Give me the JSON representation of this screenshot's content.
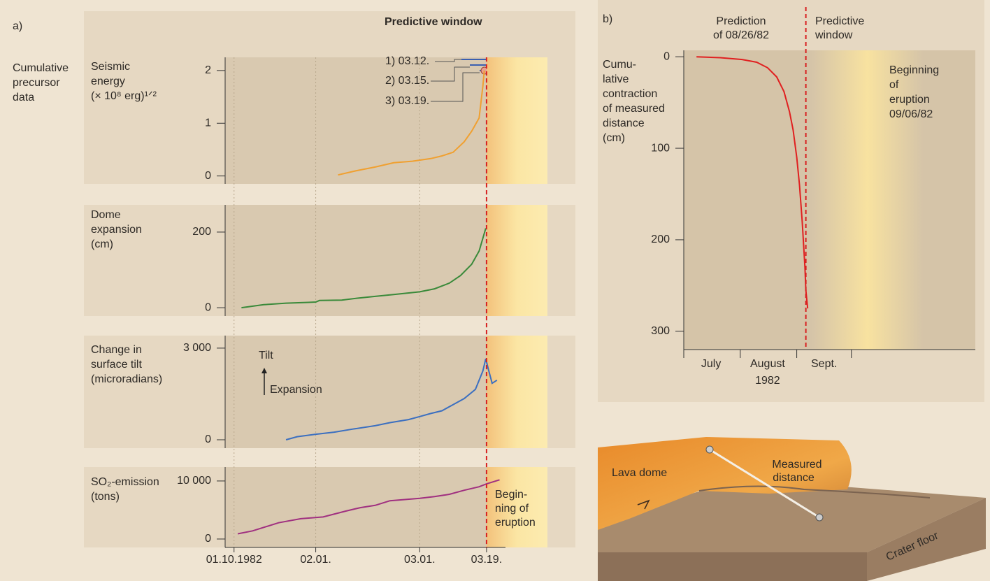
{
  "panel_a": {
    "label": "a)",
    "window": "Predictive window",
    "precursor": [
      "Cumulative",
      "precursor",
      "data"
    ]
  },
  "panel_b": {
    "label": "b)",
    "prediction": [
      "Prediction",
      "of 08/26/82"
    ],
    "window": [
      "Predictive",
      "window"
    ]
  },
  "chart_data": [
    {
      "type": "line",
      "ylabel": [
        "Seismic",
        "energy",
        "(× 10⁸ erg)¹ᐟ²"
      ],
      "color": "#f0a030",
      "x": [
        28,
        33,
        38,
        43,
        48,
        53,
        56,
        59,
        62,
        64,
        66,
        67,
        67.4
      ],
      "values": [
        0.02,
        0.1,
        0.17,
        0.25,
        0.28,
        0.33,
        0.38,
        0.45,
        0.65,
        0.85,
        1.1,
        1.7,
        2.0
      ],
      "xlim": [
        -2.4,
        84.4
      ],
      "ylim": [
        -0.15,
        2.25
      ],
      "yticks": [
        0,
        1,
        2
      ],
      "predictions": [
        "1) 03.12.",
        "2) 03.15.",
        "3) 03.19."
      ]
    },
    {
      "type": "line",
      "ylabel": [
        "Dome",
        "expansion",
        "(cm)"
      ],
      "color": "#3a8a3a",
      "x": [
        2,
        8,
        14,
        20,
        22,
        23,
        29,
        33,
        38,
        43,
        50,
        54,
        58,
        61,
        64,
        66,
        67.8
      ],
      "values": [
        0,
        8,
        12,
        14,
        15,
        19,
        20,
        25,
        30,
        35,
        42,
        50,
        65,
        85,
        115,
        150,
        210
      ],
      "xlim": [
        -2.4,
        84.4
      ],
      "ylim": [
        -22,
        272
      ],
      "yticks": [
        0,
        200
      ]
    },
    {
      "type": "line",
      "ylabel": [
        "Change in",
        "surface tilt",
        "(microradians)"
      ],
      "color": "#3b6fc0",
      "x": [
        14,
        17,
        22,
        27,
        32,
        38,
        42,
        47,
        50,
        53,
        56,
        59,
        62,
        65,
        67,
        67.8,
        68.5,
        69.5,
        70.8
      ],
      "values": [
        0,
        100,
        180,
        250,
        350,
        460,
        560,
        660,
        760,
        860,
        950,
        1150,
        1350,
        1650,
        2250,
        2650,
        2300,
        1850,
        1950
      ],
      "xlim": [
        -2.4,
        84.4
      ],
      "ylim": [
        -275,
        3410
      ],
      "yticks": [
        0,
        {
          "value": 3000,
          "label": "3 000"
        }
      ],
      "annotation": {
        "tilt": "Tilt",
        "expansion": "Expansion"
      }
    },
    {
      "type": "line",
      "ylabel": [
        "SO₂-emission",
        "(tons)"
      ],
      "color": "#a03080",
      "x": [
        1,
        5,
        12,
        18,
        24,
        30,
        34,
        38,
        42,
        46,
        50,
        54,
        58,
        62,
        66,
        68,
        71.5
      ],
      "values": [
        900,
        1400,
        2800,
        3500,
        3800,
        4800,
        5400,
        5800,
        6600,
        6800,
        7000,
        7300,
        7700,
        8400,
        9000,
        9500,
        10200
      ],
      "xlim": [
        -2.4,
        84.4
      ],
      "ylim": [
        -1450,
        12400
      ],
      "yticks": [
        0,
        {
          "value": 10000,
          "label": "10 000"
        }
      ],
      "xticks": [
        {
          "value": 0,
          "label": "01.10.1982"
        },
        {
          "value": 22,
          "label": "02.01."
        },
        {
          "value": 50,
          "label": "03.01."
        },
        {
          "value": 68,
          "label": "03.19."
        }
      ],
      "grid": true,
      "vline": 68,
      "annotation": [
        "Begin-",
        "ning of",
        "eruption"
      ]
    },
    {
      "type": "line",
      "ylabel": [
        "Cumu-",
        "lative",
        "contraction",
        "of measured",
        "distance",
        "(cm)"
      ],
      "color": "#e02020",
      "x": [
        7,
        20,
        32,
        40,
        46,
        51,
        55,
        58,
        60,
        62,
        63.5,
        65,
        66.5,
        67,
        68
      ],
      "values": [
        0,
        1,
        3,
        6,
        12,
        22,
        38,
        60,
        80,
        110,
        140,
        180,
        230,
        255,
        275
      ],
      "xlim": [
        0,
        160
      ],
      "ylim": [
        320,
        -7
      ],
      "yticks": [
        0,
        100,
        200,
        300
      ],
      "xticks": [
        {
          "value": 15,
          "label": "July"
        },
        {
          "value": 46,
          "label": "August"
        },
        {
          "value": 77,
          "label": "Sept."
        }
      ],
      "minor_xticks": [
        0,
        31,
        62,
        92
      ],
      "xlabel": "1982",
      "vline": 67,
      "annotation": [
        "Beginning",
        "of",
        "eruption",
        "09/06/82"
      ]
    }
  ],
  "diagram": {
    "dome": "Lava dome",
    "distance": [
      "Measured",
      "distance"
    ],
    "floor": "Crater floor"
  }
}
